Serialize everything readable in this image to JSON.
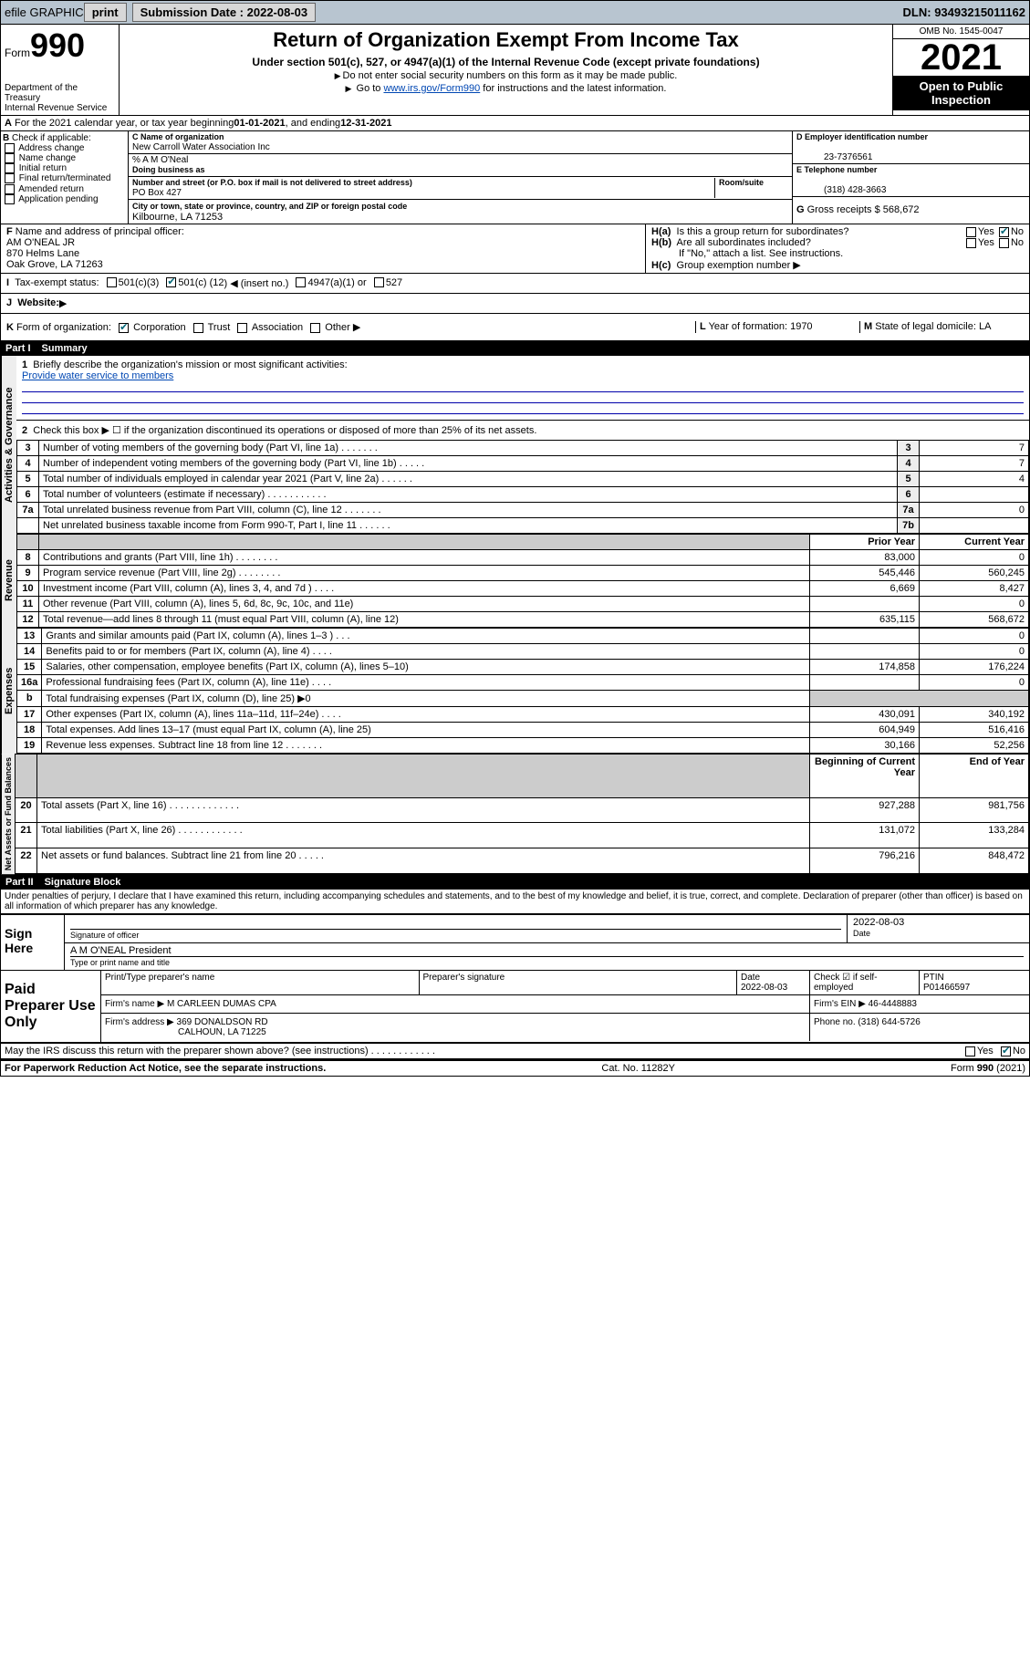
{
  "topbar": {
    "efile": "efile GRAPHIC",
    "print": "print",
    "sub_label": "Submission Date :",
    "sub_date": "2022-08-03",
    "dln_label": "DLN:",
    "dln": "93493215011162"
  },
  "header": {
    "form_word": "Form",
    "form_num": "990",
    "dept": "Department of the Treasury",
    "irs": "Internal Revenue Service",
    "title": "Return of Organization Exempt From Income Tax",
    "subtitle": "Under section 501(c), 527, or 4947(a)(1) of the Internal Revenue Code (except private foundations)",
    "note1": "Do not enter social security numbers on this form as it may be made public.",
    "note2_pre": "Go to ",
    "note2_link": "www.irs.gov/Form990",
    "note2_post": " for instructions and the latest information.",
    "omb": "OMB No. 1545-0047",
    "year": "2021",
    "inspect1": "Open to Public",
    "inspect2": "Inspection"
  },
  "lineA": {
    "text_pre": "For the 2021 calendar year, or tax year beginning ",
    "begin": "01-01-2021",
    "mid": " , and ending ",
    "end": "12-31-2021"
  },
  "B": {
    "label": "Check if applicable:",
    "items": [
      "Address change",
      "Name change",
      "Initial return",
      "Final return/terminated",
      "Amended return",
      "Application pending"
    ]
  },
  "C": {
    "name_label": "Name of organization",
    "name": "New Carroll Water Association Inc",
    "care_label": "% A M O'Neal",
    "dba_label": "Doing business as",
    "street_label": "Number and street (or P.O. box if mail is not delivered to street address)",
    "room_label": "Room/suite",
    "street": "PO Box 427",
    "city_label": "City or town, state or province, country, and ZIP or foreign postal code",
    "city": "Kilbourne, LA  71253"
  },
  "D": {
    "label": "Employer identification number",
    "value": "23-7376561"
  },
  "E": {
    "label": "Telephone number",
    "value": "(318) 428-3663"
  },
  "G": {
    "label": "Gross receipts $",
    "value": "568,672"
  },
  "F": {
    "label": "Name and address of principal officer:",
    "name": "AM O'NEAL JR",
    "addr1": "870 Helms Lane",
    "addr2": "Oak Grove, LA  71263"
  },
  "H": {
    "a": "Is this a group return for subordinates?",
    "b": "Are all subordinates included?",
    "b_note": "If \"No,\" attach a list. See instructions.",
    "c": "Group exemption number"
  },
  "I": {
    "label": "Tax-exempt status:",
    "opt1": "501(c)(3)",
    "opt2_pre": "501(c) (",
    "opt2_val": "12",
    "opt2_post": ") ◀ (insert no.)",
    "opt3": "4947(a)(1) or",
    "opt4": "527"
  },
  "J": {
    "label": "Website:"
  },
  "K": {
    "label": "Form of organization:",
    "opts": [
      "Corporation",
      "Trust",
      "Association",
      "Other"
    ]
  },
  "L": {
    "label": "Year of formation:",
    "value": "1970"
  },
  "M": {
    "label": "State of legal domicile:",
    "value": "LA"
  },
  "part1": {
    "header": "Part I",
    "title": "Summary",
    "q1": "Briefly describe the organization's mission or most significant activities:",
    "mission": "Provide water service to members",
    "q2": "Check this box ▶ ☐  if the organization discontinued its operations or disposed of more than 25% of its net assets.",
    "sidebar_gov": "Activities & Governance",
    "sidebar_rev": "Revenue",
    "sidebar_exp": "Expenses",
    "sidebar_net": "Net Assets or Fund Balances",
    "col_prior": "Prior Year",
    "col_curr": "Current Year",
    "col_begin": "Beginning of Current Year",
    "col_end": "End of Year",
    "gov_rows": [
      {
        "n": "3",
        "t": "Number of voting members of the governing body (Part VI, line 1a)  .  .  .  .  .  .  .",
        "k": "3",
        "v": "7"
      },
      {
        "n": "4",
        "t": "Number of independent voting members of the governing body (Part VI, line 1b)  .  .  .  .  .",
        "k": "4",
        "v": "7"
      },
      {
        "n": "5",
        "t": "Total number of individuals employed in calendar year 2021 (Part V, line 2a)  .  .  .  .  .  .",
        "k": "5",
        "v": "4"
      },
      {
        "n": "6",
        "t": "Total number of volunteers (estimate if necessary)  .  .  .  .  .  .  .  .  .  .  .",
        "k": "6",
        "v": ""
      },
      {
        "n": "7a",
        "t": "Total unrelated business revenue from Part VIII, column (C), line 12  .  .  .  .  .  .  .",
        "k": "7a",
        "v": "0"
      },
      {
        "n": "",
        "t": "Net unrelated business taxable income from Form 990-T, Part I, line 11  .  .  .  .  .  .",
        "k": "7b",
        "v": ""
      }
    ],
    "rev_rows": [
      {
        "n": "8",
        "t": "Contributions and grants (Part VIII, line 1h)  .  .  .  .  .  .  .  .",
        "p": "83,000",
        "c": "0"
      },
      {
        "n": "9",
        "t": "Program service revenue (Part VIII, line 2g)  .  .  .  .  .  .  .  .",
        "p": "545,446",
        "c": "560,245"
      },
      {
        "n": "10",
        "t": "Investment income (Part VIII, column (A), lines 3, 4, and 7d )  .  .  .  .",
        "p": "6,669",
        "c": "8,427"
      },
      {
        "n": "11",
        "t": "Other revenue (Part VIII, column (A), lines 5, 6d, 8c, 9c, 10c, and 11e)",
        "p": "",
        "c": "0"
      },
      {
        "n": "12",
        "t": "Total revenue—add lines 8 through 11 (must equal Part VIII, column (A), line 12)",
        "p": "635,115",
        "c": "568,672"
      }
    ],
    "exp_rows": [
      {
        "n": "13",
        "t": "Grants and similar amounts paid (Part IX, column (A), lines 1–3 )  .  .  .",
        "p": "",
        "c": "0"
      },
      {
        "n": "14",
        "t": "Benefits paid to or for members (Part IX, column (A), line 4)  .  .  .  .",
        "p": "",
        "c": "0"
      },
      {
        "n": "15",
        "t": "Salaries, other compensation, employee benefits (Part IX, column (A), lines 5–10)",
        "p": "174,858",
        "c": "176,224"
      },
      {
        "n": "16a",
        "t": "Professional fundraising fees (Part IX, column (A), line 11e)  .  .  .  .",
        "p": "",
        "c": "0"
      },
      {
        "n": "b",
        "t": "Total fundraising expenses (Part IX, column (D), line 25) ▶0",
        "p": null,
        "c": null
      },
      {
        "n": "17",
        "t": "Other expenses (Part IX, column (A), lines 11a–11d, 11f–24e)  .  .  .  .",
        "p": "430,091",
        "c": "340,192"
      },
      {
        "n": "18",
        "t": "Total expenses. Add lines 13–17 (must equal Part IX, column (A), line 25)",
        "p": "604,949",
        "c": "516,416"
      },
      {
        "n": "19",
        "t": "Revenue less expenses. Subtract line 18 from line 12  .  .  .  .  .  .  .",
        "p": "30,166",
        "c": "52,256"
      }
    ],
    "net_rows": [
      {
        "n": "20",
        "t": "Total assets (Part X, line 16)  .  .  .  .  .  .  .  .  .  .  .  .  .",
        "p": "927,288",
        "c": "981,756"
      },
      {
        "n": "21",
        "t": "Total liabilities (Part X, line 26)  .  .  .  .  .  .  .  .  .  .  .  .",
        "p": "131,072",
        "c": "133,284"
      },
      {
        "n": "22",
        "t": "Net assets or fund balances. Subtract line 21 from line 20  .  .  .  .  .",
        "p": "796,216",
        "c": "848,472"
      }
    ]
  },
  "part2": {
    "header": "Part II",
    "title": "Signature Block",
    "perjury": "Under penalties of perjury, I declare that I have examined this return, including accompanying schedules and statements, and to the best of my knowledge and belief, it is true, correct, and complete. Declaration of preparer (other than officer) is based on all information of which preparer has any knowledge.",
    "sign_here": "Sign Here",
    "sig_officer": "Signature of officer",
    "sig_date": "Date",
    "sig_date_val": "2022-08-03",
    "officer_name": "A M O'NEAL President",
    "type_name": "Type or print name and title",
    "paid": "Paid Preparer Use Only",
    "prep_name_label": "Print/Type preparer's name",
    "prep_sig_label": "Preparer's signature",
    "prep_date_label": "Date",
    "prep_date": "2022-08-03",
    "check_self": "Check ☑ if self-employed",
    "ptin_label": "PTIN",
    "ptin": "P01466597",
    "firm_name_label": "Firm's name  ▶",
    "firm_name": "M CARLEEN DUMAS CPA",
    "firm_ein_label": "Firm's EIN ▶",
    "firm_ein": "46-4448883",
    "firm_addr_label": "Firm's address ▶",
    "firm_addr1": "369 DONALDSON RD",
    "firm_addr2": "CALHOUN, LA  71225",
    "phone_label": "Phone no.",
    "phone": "(318) 644-5726",
    "may_irs": "May the IRS discuss this return with the preparer shown above? (see instructions)  .  .  .  .  .  .  .  .  .  .  .  .",
    "yes": "Yes",
    "no": "No"
  },
  "footer": {
    "pra": "For Paperwork Reduction Act Notice, see the separate instructions.",
    "cat": "Cat. No. 11282Y",
    "form": "Form 990 (2021)"
  }
}
